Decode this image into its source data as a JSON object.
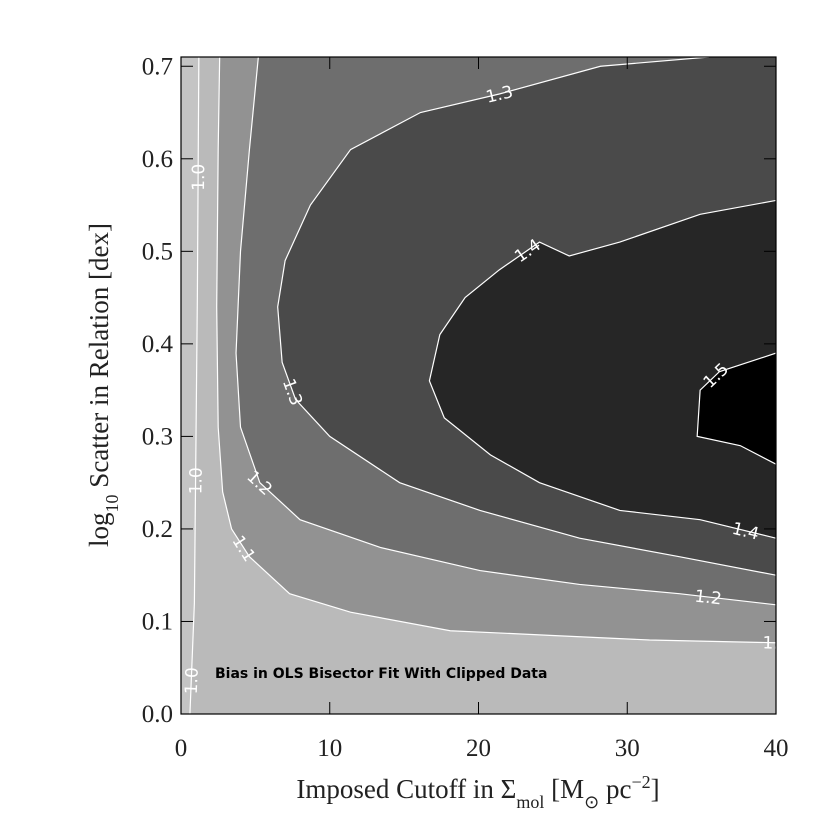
{
  "chart_data": {
    "type": "contour",
    "annotation": "Bias in OLS Bisector Fit With Clipped Data",
    "xlabel": [
      "Imposed Cutoff in Σ",
      "mol",
      " [M",
      "⊙",
      " pc",
      "−2",
      "]"
    ],
    "ylabel": [
      "log",
      "10",
      " Scatter in Relation [dex]"
    ],
    "xlim": [
      0,
      40
    ],
    "ylim": [
      0,
      0.71
    ],
    "xticks": [
      0,
      10,
      20,
      30,
      40
    ],
    "yticks": [
      {
        "value": 0,
        "label": "0.0"
      },
      0.1,
      0.2,
      0.3,
      0.4,
      0.5,
      0.6,
      0.7
    ],
    "background": "#c4c4c4",
    "line_color": "#ffffff",
    "contours": [
      {
        "label": "1.0",
        "level": 1.0,
        "color": "#bababa",
        "x": [
          1.2,
          1.1,
          0.9,
          0.6
        ],
        "y": [
          0.71,
          0.45,
          0.12,
          0
        ]
      },
      {
        "label": "1.1",
        "level": 1.1,
        "color": "#929292",
        "x": [
          2.6,
          2.5,
          2.4,
          2.5,
          2.8,
          3.4,
          4.6,
          7.3,
          11.4,
          18.1,
          24.8,
          31.5,
          40
        ],
        "y": [
          0.71,
          0.61,
          0.44,
          0.31,
          0.24,
          0.2,
          0.17,
          0.13,
          0.11,
          0.09,
          0.085,
          0.08,
          0.077
        ]
      },
      {
        "label": "1.2",
        "level": 1.2,
        "color": "#6e6e6e",
        "x": [
          5.2,
          4.6,
          4.0,
          3.7,
          4.0,
          5.3,
          8.0,
          13.4,
          20.1,
          26.8,
          33.5,
          40
        ],
        "y": [
          0.71,
          0.61,
          0.5,
          0.39,
          0.31,
          0.25,
          0.21,
          0.18,
          0.155,
          0.14,
          0.13,
          0.118
        ]
      },
      {
        "label": "1.3",
        "level": 1.3,
        "color": "#4a4a4a",
        "x": [
          35.5,
          28.2,
          21.4,
          16.1,
          11.4,
          8.7,
          7.0,
          6.5,
          6.8,
          7.7,
          10.0,
          14.7,
          20.1,
          26.8,
          33.5,
          40
        ],
        "y": [
          0.71,
          0.7,
          0.67,
          0.65,
          0.61,
          0.55,
          0.49,
          0.44,
          0.38,
          0.34,
          0.3,
          0.25,
          0.22,
          0.19,
          0.17,
          0.15
        ]
      },
      {
        "label": "1.4",
        "level": 1.4,
        "color": "#262626",
        "x": [
          40,
          34.9,
          29.5,
          26.1,
          24.1,
          21.4,
          19.1,
          17.4,
          16.7,
          17.7,
          20.8,
          24.1,
          29.5,
          34.9,
          40
        ],
        "y": [
          0.555,
          0.54,
          0.51,
          0.495,
          0.51,
          0.48,
          0.45,
          0.41,
          0.36,
          0.32,
          0.28,
          0.25,
          0.22,
          0.21,
          0.19
        ]
      },
      {
        "label": "1.5",
        "level": 1.5,
        "color": "#000000",
        "x": [
          40,
          36.2,
          34.9,
          34.7,
          37.6,
          40
        ],
        "y": [
          0.39,
          0.37,
          0.35,
          0.3,
          0.29,
          0.27
        ]
      }
    ]
  }
}
